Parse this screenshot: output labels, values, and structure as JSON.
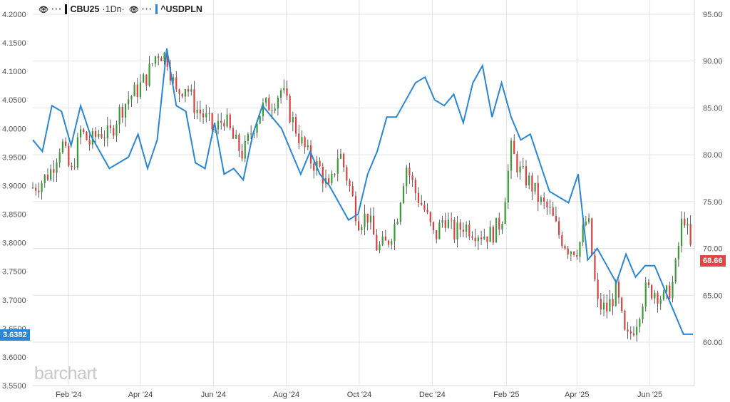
{
  "legend": {
    "series1_symbol": "CBU25",
    "series1_timeframe": "1Dn",
    "series2_symbol": "^USDPLN",
    "more_label": "···"
  },
  "watermark": "barchart",
  "last_price_left": "3.6382",
  "last_price_right": "68.66",
  "colors": {
    "up_candle": "#3a9a3a",
    "down_candle": "#d94040",
    "line": "#2a86d6",
    "left_tag": "#2a86d6",
    "right_tag": "#e04545",
    "grid": "#e3e3e3"
  },
  "chart_data": {
    "type": "line",
    "x_tick_labels": [
      "Feb '24",
      "Apr '24",
      "Jun '24",
      "Aug '24",
      "Oct '24",
      "Dec '24",
      "Feb '25",
      "Apr '25",
      "Jun '25"
    ],
    "left_axis": {
      "ticks": [
        "4.2000",
        "4.1500",
        "4.1000",
        "4.0500",
        "4.0000",
        "3.9500",
        "3.9000",
        "3.8500",
        "3.8000",
        "3.7500",
        "3.7000",
        "3.6500",
        "3.6000",
        "3.5500"
      ],
      "ylim": [
        3.55,
        4.2
      ]
    },
    "right_axis": {
      "ticks": [
        "95.00",
        "90.00",
        "85.00",
        "80.00",
        "75.00",
        "70.00",
        "65.00",
        "60.00"
      ],
      "ylim": [
        56.0,
        95.0
      ]
    },
    "series": [
      {
        "name": "^USDPLN",
        "style": "line",
        "axis": "left",
        "x": [
          "2024-01-02",
          "2024-01-10",
          "2024-01-18",
          "2024-01-26",
          "2024-02-03",
          "2024-02-11",
          "2024-02-19",
          "2024-02-27",
          "2024-03-06",
          "2024-03-14",
          "2024-03-22",
          "2024-03-30",
          "2024-04-07",
          "2024-04-15",
          "2024-04-23",
          "2024-05-01",
          "2024-05-09",
          "2024-05-17",
          "2024-05-25",
          "2024-06-02",
          "2024-06-10",
          "2024-06-18",
          "2024-06-26",
          "2024-07-04",
          "2024-07-12",
          "2024-07-20",
          "2024-07-28",
          "2024-08-05",
          "2024-08-13",
          "2024-08-21",
          "2024-08-29",
          "2024-09-06",
          "2024-09-14",
          "2024-09-22",
          "2024-09-30",
          "2024-10-08",
          "2024-10-16",
          "2024-10-24",
          "2024-11-01",
          "2024-11-09",
          "2024-11-17",
          "2024-11-25",
          "2024-12-03",
          "2024-12-11",
          "2024-12-19",
          "2024-12-27",
          "2025-01-04",
          "2025-01-12",
          "2025-01-20",
          "2025-01-28",
          "2025-02-05",
          "2025-02-13",
          "2025-02-21",
          "2025-03-01",
          "2025-03-09",
          "2025-03-17",
          "2025-03-25",
          "2025-04-02",
          "2025-04-10",
          "2025-04-18",
          "2025-04-26",
          "2025-05-04",
          "2025-05-12",
          "2025-05-20",
          "2025-05-28",
          "2025-06-05",
          "2025-06-13",
          "2025-06-21",
          "2025-06-29",
          "2025-07-07"
        ],
        "values": [
          3.98,
          3.96,
          4.04,
          4.03,
          3.97,
          4.04,
          3.99,
          3.96,
          3.93,
          3.94,
          3.95,
          3.99,
          3.93,
          3.98,
          4.14,
          4.04,
          4.03,
          3.94,
          3.93,
          4.01,
          3.92,
          3.93,
          3.91,
          3.99,
          4.04,
          4.02,
          4.0,
          3.96,
          3.92,
          3.96,
          3.92,
          3.9,
          3.87,
          3.84,
          3.85,
          3.92,
          3.96,
          4.02,
          4.02,
          4.05,
          4.08,
          4.09,
          4.05,
          4.04,
          4.06,
          4.01,
          4.08,
          4.11,
          4.02,
          4.08,
          4.02,
          3.98,
          3.99,
          3.94,
          3.89,
          3.88,
          3.87,
          3.92,
          3.77,
          3.79,
          3.76,
          3.73,
          3.78,
          3.74,
          3.76,
          3.76,
          3.72,
          3.68,
          3.64,
          3.64
        ]
      },
      {
        "name": "CBU25",
        "style": "candlestick",
        "axis": "right",
        "x": [
          "2024-01-02",
          "2024-01-10",
          "2024-01-18",
          "2024-01-26",
          "2024-02-03",
          "2024-02-11",
          "2024-02-19",
          "2024-02-27",
          "2024-03-06",
          "2024-03-14",
          "2024-03-22",
          "2024-03-30",
          "2024-04-07",
          "2024-04-15",
          "2024-04-23",
          "2024-05-01",
          "2024-05-09",
          "2024-05-17",
          "2024-05-25",
          "2024-06-02",
          "2024-06-10",
          "2024-06-18",
          "2024-06-26",
          "2024-07-04",
          "2024-07-12",
          "2024-07-20",
          "2024-07-28",
          "2024-08-05",
          "2024-08-13",
          "2024-08-21",
          "2024-08-29",
          "2024-09-06",
          "2024-09-14",
          "2024-09-22",
          "2024-09-30",
          "2024-10-08",
          "2024-10-16",
          "2024-10-24",
          "2024-11-01",
          "2024-11-09",
          "2024-11-17",
          "2024-11-25",
          "2024-12-03",
          "2024-12-11",
          "2024-12-19",
          "2024-12-27",
          "2025-01-04",
          "2025-01-12",
          "2025-01-20",
          "2025-01-28",
          "2025-02-05",
          "2025-02-13",
          "2025-02-21",
          "2025-03-01",
          "2025-03-09",
          "2025-03-17",
          "2025-03-25",
          "2025-04-02",
          "2025-04-10",
          "2025-04-18",
          "2025-04-26",
          "2025-05-04",
          "2025-05-12",
          "2025-05-20",
          "2025-05-28",
          "2025-06-05",
          "2025-06-13",
          "2025-06-21",
          "2025-06-29",
          "2025-07-07"
        ],
        "values": [
          76.5,
          77.2,
          78.5,
          81.5,
          77.8,
          82.5,
          81.2,
          82.5,
          82.0,
          84.5,
          86.0,
          87.0,
          88.5,
          91.0,
          90.5,
          86.5,
          87.5,
          85.0,
          84.0,
          82.5,
          84.0,
          81.5,
          80.0,
          83.0,
          85.0,
          85.5,
          87.0,
          84.0,
          81.5,
          79.5,
          78.5,
          76.0,
          80.5,
          77.0,
          73.0,
          73.5,
          70.0,
          70.5,
          73.0,
          79.0,
          76.0,
          74.0,
          71.0,
          73.5,
          71.5,
          72.5,
          72.0,
          71.5,
          71.5,
          73.0,
          80.5,
          78.0,
          77.0,
          75.0,
          74.0,
          71.5,
          70.0,
          70.0,
          73.5,
          64.0,
          63.5,
          65.5,
          60.0,
          62.0,
          65.5,
          65.5,
          64.5,
          66.5,
          74.0,
          68.66
        ]
      }
    ]
  }
}
